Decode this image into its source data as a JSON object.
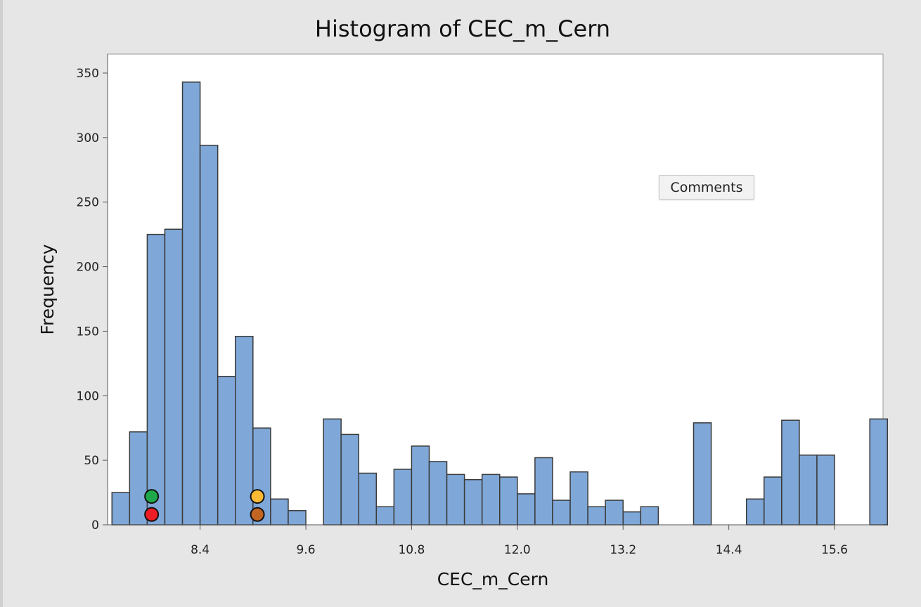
{
  "tooltip": {
    "label": "Comments"
  },
  "colors": {
    "bar_fill": "#7fa8d8",
    "bar_stroke": "#3a3a3a",
    "marker_green": "#1fa84a",
    "marker_red": "#ee1c24",
    "marker_yellow": "#fbb934",
    "marker_brown": "#c26523"
  },
  "markers": [
    {
      "name": "green-marker",
      "color": "marker_green",
      "x": 7.85,
      "y": 22
    },
    {
      "name": "red-marker",
      "color": "marker_red",
      "x": 7.85,
      "y": 8
    },
    {
      "name": "yellow-marker",
      "color": "marker_yellow",
      "x": 9.05,
      "y": 22
    },
    {
      "name": "brown-marker",
      "color": "marker_brown",
      "x": 9.05,
      "y": 8
    }
  ],
  "chart_data": {
    "type": "bar",
    "title": "Histogram of CEC_m_Cern",
    "xlabel": "CEC_m_Cern",
    "ylabel": "Frequency",
    "bin_width": 0.2,
    "xlim": [
      7.35,
      16.15
    ],
    "ylim": [
      0,
      350
    ],
    "xticks": [
      8.4,
      9.6,
      10.8,
      12.0,
      13.2,
      14.4,
      15.6
    ],
    "xtick_labels": [
      "8.4",
      "9.6",
      "10.8",
      "12.0",
      "13.2",
      "14.4",
      "15.6"
    ],
    "yticks": [
      0,
      50,
      100,
      150,
      200,
      250,
      300,
      350
    ],
    "bins": [
      {
        "x": 7.5,
        "y": 25
      },
      {
        "x": 7.7,
        "y": 72
      },
      {
        "x": 7.9,
        "y": 225
      },
      {
        "x": 8.1,
        "y": 229
      },
      {
        "x": 8.3,
        "y": 343
      },
      {
        "x": 8.5,
        "y": 294
      },
      {
        "x": 8.7,
        "y": 115
      },
      {
        "x": 8.9,
        "y": 146
      },
      {
        "x": 9.1,
        "y": 75
      },
      {
        "x": 9.3,
        "y": 20
      },
      {
        "x": 9.5,
        "y": 11
      },
      {
        "x": 9.7,
        "y": 0
      },
      {
        "x": 9.9,
        "y": 82
      },
      {
        "x": 10.1,
        "y": 70
      },
      {
        "x": 10.3,
        "y": 40
      },
      {
        "x": 10.5,
        "y": 14
      },
      {
        "x": 10.7,
        "y": 43
      },
      {
        "x": 10.9,
        "y": 61
      },
      {
        "x": 11.1,
        "y": 49
      },
      {
        "x": 11.3,
        "y": 39
      },
      {
        "x": 11.5,
        "y": 35
      },
      {
        "x": 11.7,
        "y": 39
      },
      {
        "x": 11.9,
        "y": 37
      },
      {
        "x": 12.1,
        "y": 24
      },
      {
        "x": 12.3,
        "y": 52
      },
      {
        "x": 12.5,
        "y": 19
      },
      {
        "x": 12.7,
        "y": 41
      },
      {
        "x": 12.9,
        "y": 14
      },
      {
        "x": 13.1,
        "y": 19
      },
      {
        "x": 13.3,
        "y": 10
      },
      {
        "x": 13.5,
        "y": 14
      },
      {
        "x": 13.7,
        "y": 0
      },
      {
        "x": 13.9,
        "y": 0
      },
      {
        "x": 14.1,
        "y": 79
      },
      {
        "x": 14.3,
        "y": 0
      },
      {
        "x": 14.5,
        "y": 0
      },
      {
        "x": 14.7,
        "y": 20
      },
      {
        "x": 14.9,
        "y": 37
      },
      {
        "x": 15.1,
        "y": 81
      },
      {
        "x": 15.3,
        "y": 54
      },
      {
        "x": 15.5,
        "y": 54
      },
      {
        "x": 15.7,
        "y": 0
      },
      {
        "x": 15.9,
        "y": 0
      },
      {
        "x": 16.1,
        "y": 82
      }
    ]
  }
}
